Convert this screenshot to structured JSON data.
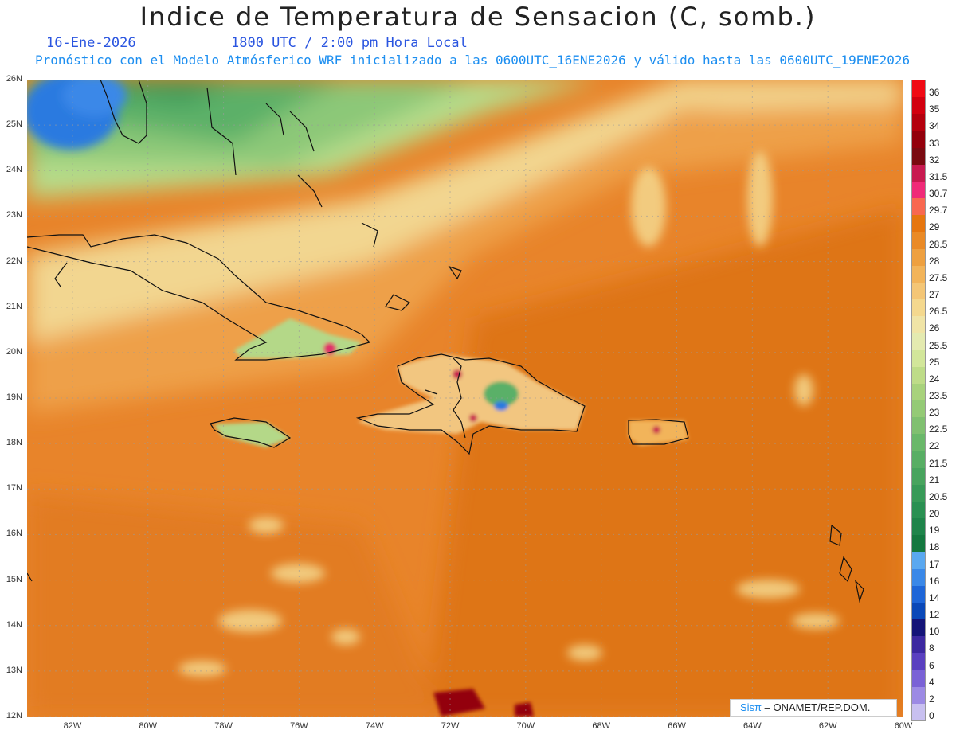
{
  "title": "Indice de Temperatura de Sensacion (C, somb.)",
  "date": "16-Ene-2026",
  "time": "1800 UTC / 2:00 pm Hora Local",
  "subtitle": "Pronóstico con el Modelo Atmósferico WRF inicializado a las 0600UTC_16ENE2026 y válido hasta las  0600UTC_19ENE2026",
  "credit": {
    "brand": "Sisπ",
    "org": " – ONAMET/REP.DOM."
  },
  "map": {
    "lat_labels": [
      "26N",
      "25N",
      "24N",
      "23N",
      "22N",
      "21N",
      "20N",
      "19N",
      "18N",
      "17N",
      "16N",
      "15N",
      "14N",
      "13N",
      "12N"
    ],
    "lon_labels": [
      "82W",
      "80W",
      "78W",
      "76W",
      "74W",
      "72W",
      "70W",
      "68W",
      "66W",
      "64W",
      "62W",
      "60W"
    ],
    "lat_range": [
      12,
      26
    ],
    "lon_range": [
      -83.2,
      -60
    ]
  },
  "legend": {
    "levels": [
      "36",
      "35",
      "34",
      "33",
      "32",
      "31.5",
      "30.7",
      "29.7",
      "29",
      "28.5",
      "28",
      "27.5",
      "27",
      "26.5",
      "26",
      "25.5",
      "25",
      "24",
      "23.5",
      "23",
      "22.5",
      "22",
      "21.5",
      "21",
      "20.5",
      "20",
      "19",
      "18",
      "17",
      "16",
      "14",
      "12",
      "10",
      "8",
      "6",
      "4",
      "2",
      "0"
    ],
    "colors": [
      "#f00a14",
      "#d2000f",
      "#b4000d",
      "#93000b",
      "#7a0a10",
      "#c81a50",
      "#f02a78",
      "#f86850",
      "#e6760f",
      "#ea8a26",
      "#eea040",
      "#f2b45a",
      "#f4c676",
      "#f4d88e",
      "#f0e4a6",
      "#e4eab0",
      "#d2e69a",
      "#bedc88",
      "#a8d27c",
      "#94ca76",
      "#80c070",
      "#6ab86a",
      "#58ae64",
      "#48a45e",
      "#389a58",
      "#2a9052",
      "#1f844a",
      "#14783f",
      "#5aa8f0",
      "#3a88e8",
      "#1e66d8",
      "#0a48b8",
      "#141478",
      "#3c28a0",
      "#5a40c0",
      "#7a62d6",
      "#9c8ae4",
      "#c8c0f0"
    ]
  }
}
